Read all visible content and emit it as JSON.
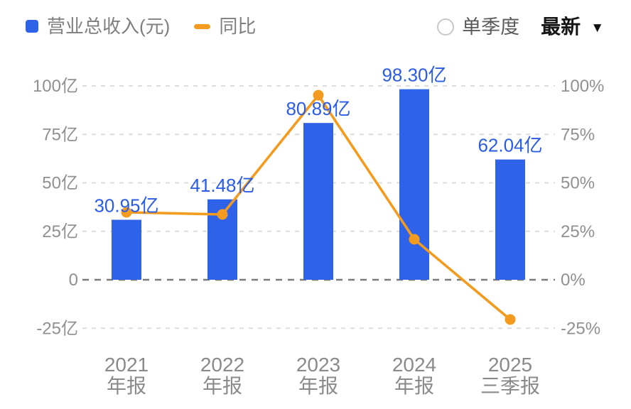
{
  "legend": {
    "revenue_label": "营业总收入(元)",
    "yoy_label": "同比"
  },
  "controls": {
    "quarter_label": "单季度",
    "quarter_checked": false,
    "period_label": "最新",
    "dropdown_glyph": "▼"
  },
  "colors": {
    "bar": "#2e62e9",
    "bar_label": "#2b5ce6",
    "line": "#f29b1e",
    "grid": "#dcdcdc",
    "zero_line": "#7a7a7a",
    "axis_text": "#909090",
    "legend_text": "#7e7e7e"
  },
  "chart_data": {
    "type": "bar",
    "title": "",
    "xlabel": "",
    "ylabel": "",
    "legend_position": "top-left",
    "grid": "dashed-horizontal",
    "categories": [
      {
        "year": "2021",
        "period": "年报"
      },
      {
        "year": "2022",
        "period": "年报"
      },
      {
        "year": "2023",
        "period": "年报"
      },
      {
        "year": "2024",
        "period": "年报"
      },
      {
        "year": "2025",
        "period": "三季报"
      }
    ],
    "series": [
      {
        "name": "营业总收入(元)",
        "type": "bar",
        "unit": "亿",
        "values": [
          30.95,
          41.48,
          80.89,
          98.3,
          62.04
        ],
        "labels": [
          "30.95亿",
          "41.48亿",
          "80.89亿",
          "98.30亿",
          "62.04亿"
        ]
      },
      {
        "name": "同比",
        "type": "line",
        "unit": "%",
        "values_estimated": true,
        "values": [
          34.8,
          33.7,
          95.2,
          20.9,
          -20.5
        ]
      }
    ],
    "left_axis": {
      "tick_values": [
        100,
        75,
        50,
        25,
        0,
        -25
      ],
      "ticks": [
        "100亿",
        "75亿",
        "50亿",
        "25亿",
        "0",
        "-25亿"
      ],
      "range": [
        -25,
        100
      ]
    },
    "right_axis": {
      "tick_values": [
        100,
        75,
        50,
        25,
        0,
        -25
      ],
      "ticks": [
        "100%",
        "75%",
        "50%",
        "25%",
        "0%",
        "-25%"
      ],
      "range": [
        -25,
        100
      ]
    }
  }
}
